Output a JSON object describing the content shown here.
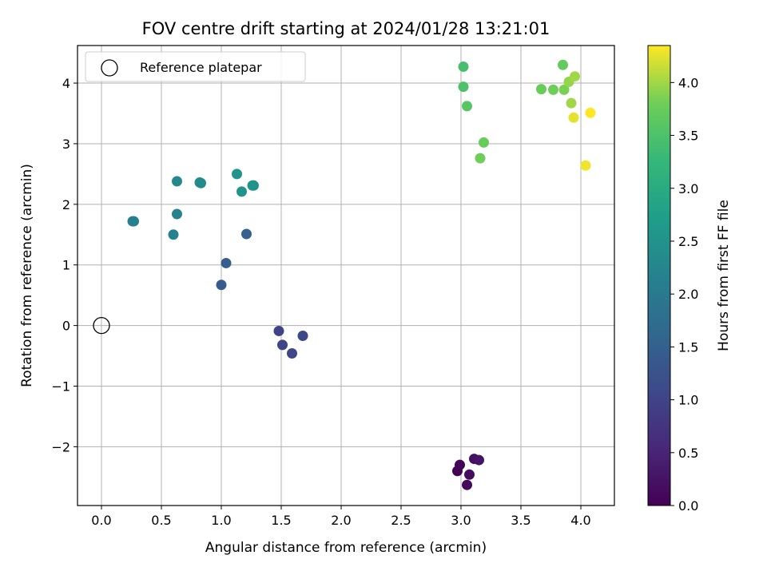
{
  "chart_data": {
    "type": "scatter",
    "title": "FOV centre drift starting at 2024/01/28 13:21:01",
    "xlabel": "Angular distance from reference (arcmin)",
    "ylabel": "Rotation from reference (arcmin)",
    "xlim": [
      -0.2,
      4.28
    ],
    "ylim": [
      -2.97,
      4.62
    ],
    "xticks": [
      0.0,
      0.5,
      1.0,
      1.5,
      2.0,
      2.5,
      3.0,
      3.5,
      4.0
    ],
    "xtick_labels": [
      "0.0",
      "0.5",
      "1.0",
      "1.5",
      "2.0",
      "2.5",
      "3.0",
      "3.5",
      "4.0"
    ],
    "yticks": [
      -2,
      -1,
      0,
      1,
      2,
      3,
      4
    ],
    "ytick_labels": [
      "−2",
      "−1",
      "0",
      "1",
      "2",
      "3",
      "4"
    ],
    "grid": true,
    "legend": {
      "position": "top-left",
      "entries": [
        "Reference platepar"
      ]
    },
    "reference_point": {
      "x": 0.0,
      "y": 0.0,
      "label": "Reference platepar"
    },
    "colorbar": {
      "label": "Hours from first FF file",
      "colormap": "viridis",
      "range": [
        0.0,
        4.35
      ],
      "ticks": [
        0.0,
        0.5,
        1.0,
        1.5,
        2.0,
        2.5,
        3.0,
        3.5,
        4.0
      ],
      "tick_labels": [
        "0.0",
        "0.5",
        "1.0",
        "1.5",
        "2.0",
        "2.5",
        "3.0",
        "3.5",
        "4.0"
      ]
    },
    "points": [
      {
        "x": 2.97,
        "y": -2.4,
        "c": 0.0
      },
      {
        "x": 2.99,
        "y": -2.3,
        "c": 0.05
      },
      {
        "x": 3.05,
        "y": -2.63,
        "c": 0.1
      },
      {
        "x": 3.07,
        "y": -2.46,
        "c": 0.15
      },
      {
        "x": 3.11,
        "y": -2.2,
        "c": 0.2
      },
      {
        "x": 3.15,
        "y": -2.22,
        "c": 0.25
      },
      {
        "x": 1.48,
        "y": -0.09,
        "c": 1.0
      },
      {
        "x": 1.51,
        "y": -0.32,
        "c": 1.02
      },
      {
        "x": 1.59,
        "y": -0.46,
        "c": 1.04
      },
      {
        "x": 1.68,
        "y": -0.17,
        "c": 1.07
      },
      {
        "x": 1.0,
        "y": 0.67,
        "c": 1.4
      },
      {
        "x": 1.04,
        "y": 1.03,
        "c": 1.45
      },
      {
        "x": 1.21,
        "y": 1.51,
        "c": 1.5
      },
      {
        "x": 0.26,
        "y": 1.72,
        "c": 2.1
      },
      {
        "x": 0.27,
        "y": 1.72,
        "c": 2.12
      },
      {
        "x": 0.6,
        "y": 1.5,
        "c": 2.2
      },
      {
        "x": 0.63,
        "y": 1.84,
        "c": 2.2
      },
      {
        "x": 0.63,
        "y": 2.38,
        "c": 2.3
      },
      {
        "x": 0.82,
        "y": 2.36,
        "c": 2.35
      },
      {
        "x": 0.83,
        "y": 2.35,
        "c": 2.35
      },
      {
        "x": 1.13,
        "y": 2.5,
        "c": 2.5
      },
      {
        "x": 1.17,
        "y": 2.21,
        "c": 2.5
      },
      {
        "x": 1.26,
        "y": 2.31,
        "c": 2.5
      },
      {
        "x": 1.27,
        "y": 2.31,
        "c": 2.5
      },
      {
        "x": 3.02,
        "y": 4.27,
        "c": 3.45
      },
      {
        "x": 3.02,
        "y": 3.94,
        "c": 3.5
      },
      {
        "x": 3.05,
        "y": 3.62,
        "c": 3.6
      },
      {
        "x": 3.19,
        "y": 3.02,
        "c": 3.75
      },
      {
        "x": 3.16,
        "y": 2.76,
        "c": 3.8
      },
      {
        "x": 3.67,
        "y": 3.9,
        "c": 3.75
      },
      {
        "x": 3.77,
        "y": 3.89,
        "c": 3.8
      },
      {
        "x": 3.85,
        "y": 4.3,
        "c": 3.7
      },
      {
        "x": 3.86,
        "y": 3.89,
        "c": 3.85
      },
      {
        "x": 3.9,
        "y": 4.02,
        "c": 3.95
      },
      {
        "x": 3.95,
        "y": 4.11,
        "c": 4.0
      },
      {
        "x": 3.92,
        "y": 3.67,
        "c": 4.0
      },
      {
        "x": 3.94,
        "y": 3.43,
        "c": 4.25
      },
      {
        "x": 4.04,
        "y": 2.64,
        "c": 4.3
      },
      {
        "x": 4.08,
        "y": 3.51,
        "c": 4.35
      }
    ]
  }
}
